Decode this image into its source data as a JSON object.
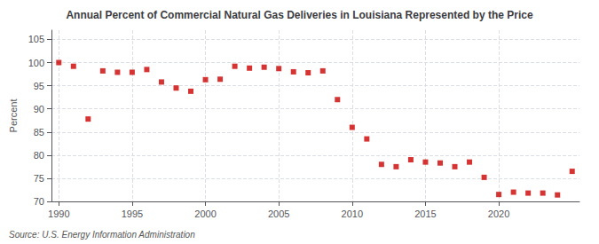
{
  "chart_data": {
    "type": "scatter",
    "title": "Annual Percent of Commercial Natural Gas Deliveries in Louisiana Represented by the Price",
    "ylabel": "Percent",
    "annotation": "Source: U.S. Energy Information Administration",
    "x": [
      1990,
      1991,
      1992,
      1993,
      1994,
      1995,
      1996,
      1997,
      1998,
      1999,
      2000,
      2001,
      2002,
      2003,
      2004,
      2005,
      2006,
      2007,
      2008,
      2009,
      2010,
      2011,
      2012,
      2013,
      2014,
      2015,
      2016,
      2017,
      2018,
      2019,
      2020,
      2021,
      2022,
      2023,
      2024,
      2025
    ],
    "values": [
      100.0,
      99.2,
      87.8,
      98.2,
      97.9,
      97.9,
      98.5,
      95.8,
      94.5,
      93.8,
      96.3,
      96.4,
      99.2,
      98.8,
      99.0,
      98.7,
      98.0,
      97.8,
      98.2,
      92.0,
      86.0,
      83.5,
      78.0,
      77.5,
      79.0,
      78.5,
      78.3,
      77.5,
      78.5,
      75.2,
      71.5,
      72.0,
      71.8,
      71.8,
      71.4,
      76.5
    ],
    "xlim": [
      1989.5,
      2025.5
    ],
    "ylim": [
      70,
      107
    ],
    "xticks": [
      1990,
      1995,
      2000,
      2005,
      2010,
      2015,
      2020
    ],
    "yticks": [
      70,
      75,
      80,
      85,
      90,
      95,
      100,
      105
    ],
    "grid": true,
    "color": "#cc0000",
    "marker": "square"
  }
}
